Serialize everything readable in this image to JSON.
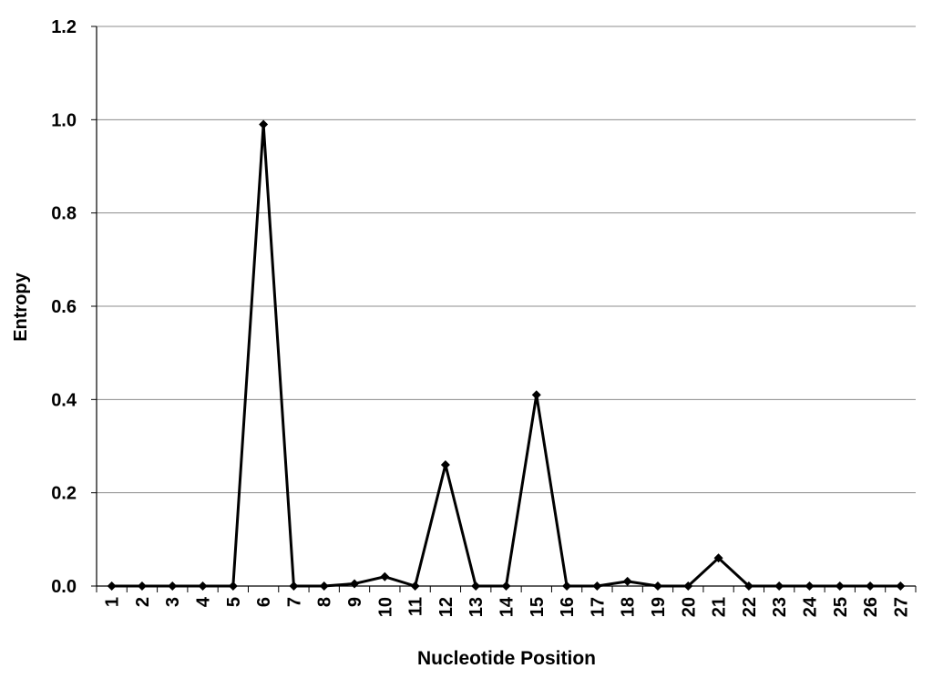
{
  "chart_data": {
    "type": "line",
    "title": "",
    "xlabel": "Nucleotide Position",
    "ylabel": "Entropy",
    "categories": [
      "1",
      "2",
      "3",
      "4",
      "5",
      "6",
      "7",
      "8",
      "9",
      "10",
      "11",
      "12",
      "13",
      "14",
      "15",
      "16",
      "17",
      "18",
      "19",
      "20",
      "21",
      "22",
      "23",
      "24",
      "25",
      "26",
      "27"
    ],
    "series": [
      {
        "values": [
          0,
          0,
          0,
          0,
          0,
          0.99,
          0,
          0,
          0.005,
          0.02,
          0,
          0.26,
          0,
          0,
          0.41,
          0,
          0,
          0.01,
          0,
          0,
          0.06,
          0,
          0,
          0,
          0,
          0,
          0
        ],
        "color": "#000000",
        "marker": "diamond"
      }
    ],
    "ylim": [
      0,
      1.2
    ],
    "yticks": [
      "0.0",
      "0.2",
      "0.4",
      "0.6",
      "0.8",
      "1.0",
      "1.2"
    ],
    "grid": true,
    "legend": "none"
  }
}
